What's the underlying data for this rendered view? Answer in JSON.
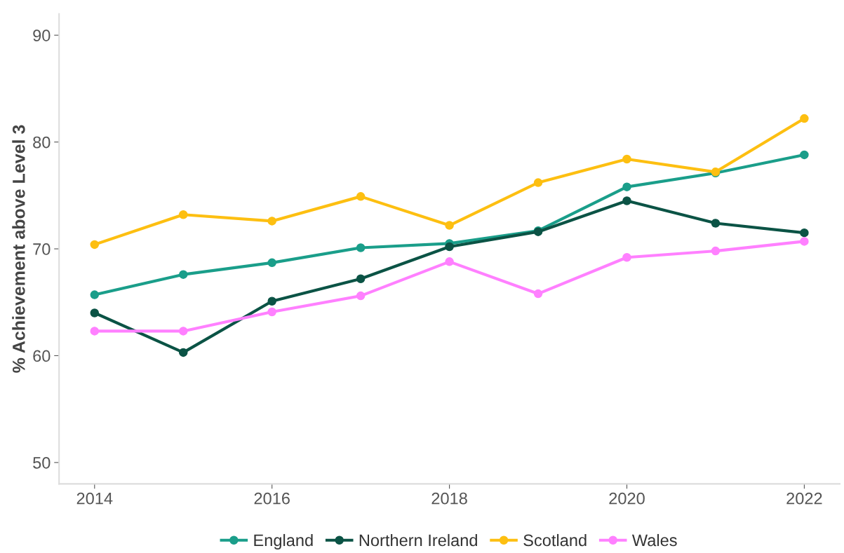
{
  "chart_data": {
    "type": "line",
    "ylabel": "% Achievement above Level 3",
    "x": [
      2014,
      2015,
      2016,
      2017,
      2018,
      2019,
      2020,
      2021,
      2022
    ],
    "series": [
      {
        "name": "England",
        "color": "#1a9e8a",
        "values": [
          65.7,
          67.6,
          68.7,
          70.1,
          70.5,
          71.7,
          75.8,
          77.1,
          78.8
        ]
      },
      {
        "name": "Northern Ireland",
        "color": "#0b5345",
        "values": [
          64.0,
          60.3,
          65.1,
          67.2,
          70.2,
          71.6,
          74.5,
          72.4,
          71.5
        ]
      },
      {
        "name": "Scotland",
        "color": "#fdbf11",
        "values": [
          70.4,
          73.2,
          72.6,
          74.9,
          72.2,
          76.2,
          78.4,
          77.2,
          82.2
        ]
      },
      {
        "name": "Wales",
        "color": "#ff80ff",
        "values": [
          62.3,
          62.3,
          64.1,
          65.6,
          68.8,
          65.8,
          69.2,
          69.8,
          70.7
        ]
      }
    ],
    "xlim": [
      2013.6,
      2022.4
    ],
    "xticks": [
      2014,
      2016,
      2018,
      2020,
      2022
    ],
    "ylim": [
      48,
      92
    ],
    "yticks": [
      50,
      60,
      70,
      80,
      90
    ],
    "grid": false,
    "legend": "bottom",
    "marker": "circle",
    "line_style": "solid"
  }
}
